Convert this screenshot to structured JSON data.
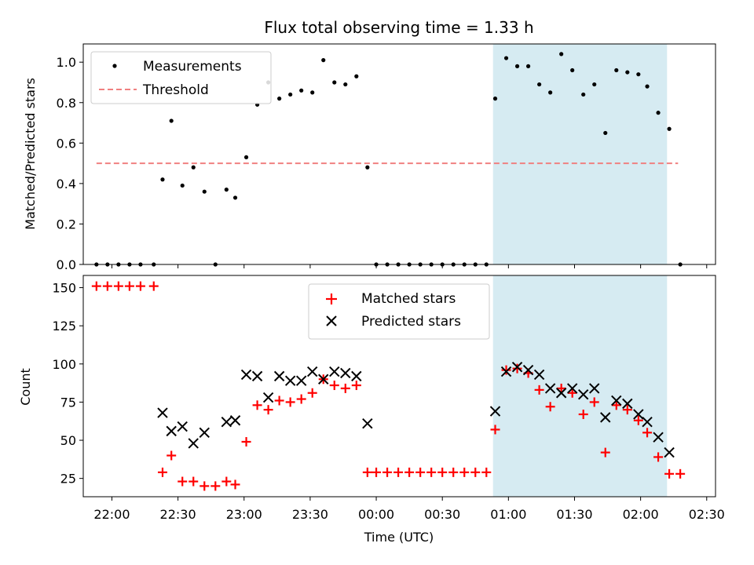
{
  "chart_data": [
    {
      "type": "scatter",
      "title": "Flux total observing time = 1.33 h",
      "ylabel": "Matched/Predicted stars",
      "xlim": [
        "21:47",
        "02:34"
      ],
      "ylim": [
        0,
        1.09
      ],
      "yticks": [
        "0.0",
        "0.2",
        "0.4",
        "0.6",
        "0.8",
        "1.0"
      ],
      "legend_position": "top-left",
      "shaded_span": {
        "from": "00:53",
        "to": "02:12",
        "color": "#add8e6"
      },
      "threshold": {
        "name": "Threshold",
        "value": 0.5,
        "from": "21:53",
        "to": "02:17",
        "color": "#f08080"
      },
      "series": [
        {
          "name": "Measurements",
          "color": "#000000",
          "points": [
            [
              "21:53",
              0.0
            ],
            [
              "21:58",
              0.0
            ],
            [
              "22:03",
              0.0
            ],
            [
              "22:08",
              0.0
            ],
            [
              "22:13",
              0.0
            ],
            [
              "22:19",
              0.0
            ],
            [
              "22:23",
              0.42
            ],
            [
              "22:27",
              0.71
            ],
            [
              "22:32",
              0.39
            ],
            [
              "22:37",
              0.48
            ],
            [
              "22:42",
              0.36
            ],
            [
              "22:47",
              0.0
            ],
            [
              "22:52",
              0.37
            ],
            [
              "22:56",
              0.33
            ],
            [
              "23:01",
              0.53
            ],
            [
              "23:06",
              0.79
            ],
            [
              "23:11",
              0.9
            ],
            [
              "23:16",
              0.82
            ],
            [
              "23:21",
              0.84
            ],
            [
              "23:26",
              0.86
            ],
            [
              "23:31",
              0.85
            ],
            [
              "23:36",
              1.01
            ],
            [
              "23:41",
              0.9
            ],
            [
              "23:46",
              0.89
            ],
            [
              "23:51",
              0.93
            ],
            [
              "23:56",
              0.48
            ],
            [
              "00:00",
              0.0
            ],
            [
              "00:05",
              0.0
            ],
            [
              "00:10",
              0.0
            ],
            [
              "00:15",
              0.0
            ],
            [
              "00:20",
              0.0
            ],
            [
              "00:25",
              0.0
            ],
            [
              "00:30",
              0.0
            ],
            [
              "00:35",
              0.0
            ],
            [
              "00:40",
              0.0
            ],
            [
              "00:45",
              0.0
            ],
            [
              "00:50",
              0.0
            ],
            [
              "00:54",
              0.82
            ],
            [
              "00:59",
              1.02
            ],
            [
              "01:04",
              0.98
            ],
            [
              "01:09",
              0.98
            ],
            [
              "01:14",
              0.89
            ],
            [
              "01:19",
              0.85
            ],
            [
              "01:24",
              1.04
            ],
            [
              "01:29",
              0.96
            ],
            [
              "01:34",
              0.84
            ],
            [
              "01:39",
              0.89
            ],
            [
              "01:44",
              0.65
            ],
            [
              "01:49",
              0.96
            ],
            [
              "01:54",
              0.95
            ],
            [
              "01:59",
              0.94
            ],
            [
              "02:03",
              0.88
            ],
            [
              "02:08",
              0.75
            ],
            [
              "02:13",
              0.67
            ],
            [
              "02:18",
              0.0
            ]
          ]
        }
      ]
    },
    {
      "type": "scatter",
      "xlabel": "Time (UTC)",
      "ylabel": "Count",
      "xlim": [
        "21:47",
        "02:34"
      ],
      "ylim": [
        13,
        158
      ],
      "xticks": [
        "22:00",
        "22:30",
        "23:00",
        "23:30",
        "00:00",
        "00:30",
        "01:00",
        "01:30",
        "02:00",
        "02:30"
      ],
      "yticks": [
        "25",
        "50",
        "75",
        "100",
        "125",
        "150"
      ],
      "legend_position": "top-center",
      "shaded_span": {
        "from": "00:53",
        "to": "02:12",
        "color": "#add8e6"
      },
      "series": [
        {
          "name": "Matched stars",
          "marker": "plus",
          "color": "#ff0000",
          "points": [
            [
              "21:53",
              151
            ],
            [
              "21:58",
              151
            ],
            [
              "22:03",
              151
            ],
            [
              "22:08",
              151
            ],
            [
              "22:13",
              151
            ],
            [
              "22:19",
              151
            ],
            [
              "22:23",
              29
            ],
            [
              "22:27",
              40
            ],
            [
              "22:32",
              23
            ],
            [
              "22:37",
              23
            ],
            [
              "22:42",
              20
            ],
            [
              "22:47",
              20
            ],
            [
              "22:52",
              23
            ],
            [
              "22:56",
              21
            ],
            [
              "23:01",
              49
            ],
            [
              "23:06",
              73
            ],
            [
              "23:11",
              70
            ],
            [
              "23:16",
              76
            ],
            [
              "23:21",
              75
            ],
            [
              "23:26",
              77
            ],
            [
              "23:31",
              81
            ],
            [
              "23:36",
              90
            ],
            [
              "23:41",
              86
            ],
            [
              "23:46",
              84
            ],
            [
              "23:51",
              86
            ],
            [
              "23:56",
              29
            ],
            [
              "00:00",
              29
            ],
            [
              "00:05",
              29
            ],
            [
              "00:10",
              29
            ],
            [
              "00:15",
              29
            ],
            [
              "00:20",
              29
            ],
            [
              "00:25",
              29
            ],
            [
              "00:30",
              29
            ],
            [
              "00:35",
              29
            ],
            [
              "00:40",
              29
            ],
            [
              "00:45",
              29
            ],
            [
              "00:50",
              29
            ],
            [
              "00:54",
              57
            ],
            [
              "00:59",
              96
            ],
            [
              "01:04",
              97
            ],
            [
              "01:09",
              94
            ],
            [
              "01:14",
              83
            ],
            [
              "01:19",
              72
            ],
            [
              "01:24",
              84
            ],
            [
              "01:29",
              81
            ],
            [
              "01:34",
              67
            ],
            [
              "01:39",
              75
            ],
            [
              "01:44",
              42
            ],
            [
              "01:49",
              73
            ],
            [
              "01:54",
              70
            ],
            [
              "01:59",
              63
            ],
            [
              "02:03",
              55
            ],
            [
              "02:08",
              39
            ],
            [
              "02:13",
              28
            ],
            [
              "02:18",
              28
            ]
          ]
        },
        {
          "name": "Predicted stars",
          "marker": "x",
          "color": "#000000",
          "points": [
            [
              "22:23",
              68
            ],
            [
              "22:27",
              56
            ],
            [
              "22:32",
              59
            ],
            [
              "22:37",
              48
            ],
            [
              "22:42",
              55
            ],
            [
              "22:52",
              62
            ],
            [
              "22:56",
              63
            ],
            [
              "23:01",
              93
            ],
            [
              "23:06",
              92
            ],
            [
              "23:11",
              78
            ],
            [
              "23:16",
              92
            ],
            [
              "23:21",
              89
            ],
            [
              "23:26",
              89
            ],
            [
              "23:31",
              95
            ],
            [
              "23:36",
              90
            ],
            [
              "23:41",
              95
            ],
            [
              "23:46",
              94
            ],
            [
              "23:51",
              92
            ],
            [
              "23:56",
              61
            ],
            [
              "00:54",
              69
            ],
            [
              "00:59",
              95
            ],
            [
              "01:04",
              98
            ],
            [
              "01:09",
              96
            ],
            [
              "01:14",
              93
            ],
            [
              "01:19",
              84
            ],
            [
              "01:24",
              81
            ],
            [
              "01:29",
              84
            ],
            [
              "01:34",
              80
            ],
            [
              "01:39",
              84
            ],
            [
              "01:44",
              65
            ],
            [
              "01:49",
              76
            ],
            [
              "01:54",
              74
            ],
            [
              "01:59",
              67
            ],
            [
              "02:03",
              62
            ],
            [
              "02:08",
              52
            ],
            [
              "02:13",
              42
            ]
          ]
        }
      ]
    }
  ]
}
